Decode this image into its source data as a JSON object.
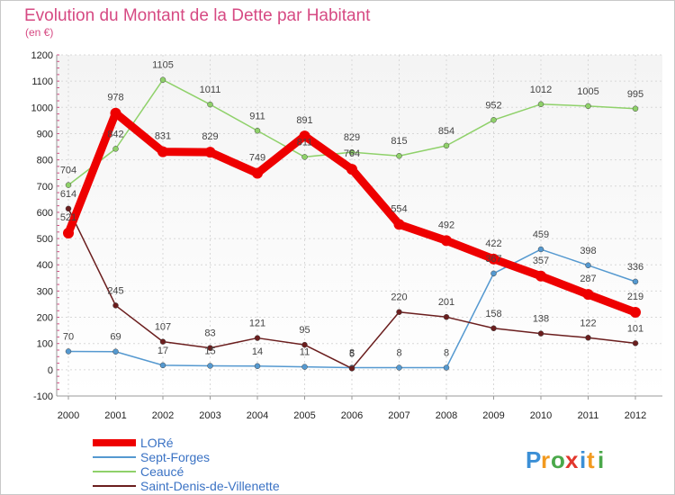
{
  "chart_data": {
    "type": "line",
    "title": "Evolution du Montant de la Dette par Habitant",
    "subtitle": "(en €)",
    "x": [
      "2000",
      "2001",
      "2002",
      "2003",
      "2004",
      "2005",
      "2006",
      "2007",
      "2008",
      "2009",
      "2010",
      "2011",
      "2012"
    ],
    "yticks": [
      "1200",
      "1100",
      "1000",
      "900",
      "800",
      "700",
      "600",
      "500",
      "400",
      "300",
      "200",
      "100",
      "0",
      "-100"
    ],
    "ylim": [
      -100,
      1200
    ],
    "grid": true,
    "legend_position": "bottom-left",
    "series": [
      {
        "name": "LORé",
        "color": "#ee0000",
        "values": [
          521,
          978,
          831,
          829,
          749,
          891,
          764,
          554,
          492,
          422,
          357,
          287,
          219
        ]
      },
      {
        "name": "Sept-Forges",
        "color": "#5599d0",
        "values": [
          70,
          69,
          17,
          15,
          14,
          11,
          8,
          8,
          8,
          367,
          459,
          398,
          336
        ]
      },
      {
        "name": "Ceaucé",
        "color": "#8fd16a",
        "values": [
          704,
          842,
          1105,
          1011,
          911,
          811,
          829,
          815,
          854,
          952,
          1012,
          1005,
          995
        ]
      },
      {
        "name": "Saint-Denis-de-Villenette",
        "color": "#6b1e1e",
        "values": [
          614,
          245,
          107,
          83,
          121,
          95,
          5,
          220,
          201,
          158,
          138,
          122,
          101
        ]
      }
    ],
    "logo": "Proxiti"
  }
}
